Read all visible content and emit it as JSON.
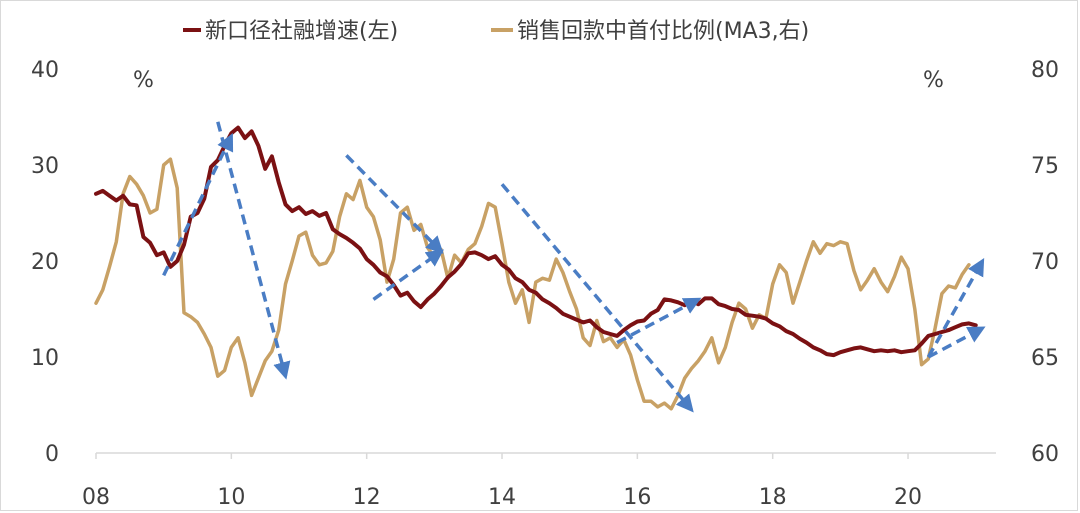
{
  "chart_data": {
    "type": "line",
    "legend": [
      {
        "name": "新口径社融增速(左)",
        "color": "#7b1113"
      },
      {
        "name": "销售回款中首付比例(MA3,右)",
        "color": "#c8a165"
      }
    ],
    "left_unit": "%",
    "right_unit": "%",
    "x_ticks": [
      "08",
      "10",
      "12",
      "14",
      "16",
      "18",
      "20"
    ],
    "x_range": [
      2008,
      2021.3
    ],
    "left_axis": {
      "range": [
        0,
        40
      ],
      "ticks": [
        "0",
        "10",
        "20",
        "30",
        "40"
      ]
    },
    "right_axis": {
      "range": [
        60,
        80
      ],
      "ticks": [
        "60",
        "65",
        "70",
        "75",
        "80"
      ]
    },
    "series": [
      {
        "name": "新口径社融增速(左)",
        "axis": "left",
        "color": "#7b1113",
        "points": [
          [
            2008.0,
            27.0
          ],
          [
            2008.1,
            27.3
          ],
          [
            2008.2,
            26.8
          ],
          [
            2008.3,
            26.3
          ],
          [
            2008.4,
            26.8
          ],
          [
            2008.5,
            25.9
          ],
          [
            2008.6,
            25.8
          ],
          [
            2008.7,
            22.5
          ],
          [
            2008.8,
            21.9
          ],
          [
            2008.9,
            20.6
          ],
          [
            2009.0,
            20.9
          ],
          [
            2009.1,
            19.4
          ],
          [
            2009.2,
            20.0
          ],
          [
            2009.3,
            21.7
          ],
          [
            2009.4,
            24.6
          ],
          [
            2009.5,
            25.0
          ],
          [
            2009.6,
            26.5
          ],
          [
            2009.7,
            29.8
          ],
          [
            2009.8,
            30.5
          ],
          [
            2009.9,
            32.0
          ],
          [
            2010.0,
            33.3
          ],
          [
            2010.1,
            33.9
          ],
          [
            2010.2,
            32.8
          ],
          [
            2010.3,
            33.5
          ],
          [
            2010.4,
            32.0
          ],
          [
            2010.5,
            29.6
          ],
          [
            2010.6,
            30.9
          ],
          [
            2010.7,
            28.2
          ],
          [
            2010.8,
            25.9
          ],
          [
            2010.9,
            25.2
          ],
          [
            2011.0,
            25.6
          ],
          [
            2011.1,
            24.9
          ],
          [
            2011.2,
            25.2
          ],
          [
            2011.3,
            24.7
          ],
          [
            2011.4,
            25.0
          ],
          [
            2011.5,
            23.3
          ],
          [
            2011.6,
            22.8
          ],
          [
            2011.7,
            22.4
          ],
          [
            2011.8,
            21.9
          ],
          [
            2011.9,
            21.3
          ],
          [
            2012.0,
            20.2
          ],
          [
            2012.1,
            19.6
          ],
          [
            2012.2,
            18.8
          ],
          [
            2012.3,
            18.4
          ],
          [
            2012.4,
            17.5
          ],
          [
            2012.5,
            16.4
          ],
          [
            2012.6,
            16.7
          ],
          [
            2012.7,
            15.8
          ],
          [
            2012.8,
            15.2
          ],
          [
            2012.9,
            16.0
          ],
          [
            2013.0,
            16.6
          ],
          [
            2013.1,
            17.4
          ],
          [
            2013.2,
            18.3
          ],
          [
            2013.3,
            18.9
          ],
          [
            2013.4,
            19.7
          ],
          [
            2013.5,
            20.8
          ],
          [
            2013.6,
            20.9
          ],
          [
            2013.7,
            20.6
          ],
          [
            2013.8,
            20.2
          ],
          [
            2013.9,
            20.5
          ],
          [
            2014.0,
            19.6
          ],
          [
            2014.1,
            19.1
          ],
          [
            2014.2,
            18.2
          ],
          [
            2014.3,
            17.8
          ],
          [
            2014.4,
            17.0
          ],
          [
            2014.5,
            16.7
          ],
          [
            2014.6,
            16.0
          ],
          [
            2014.7,
            15.6
          ],
          [
            2014.8,
            15.1
          ],
          [
            2014.9,
            14.5
          ],
          [
            2015.0,
            14.2
          ],
          [
            2015.1,
            13.9
          ],
          [
            2015.2,
            13.6
          ],
          [
            2015.3,
            13.8
          ],
          [
            2015.4,
            13.1
          ],
          [
            2015.5,
            12.6
          ],
          [
            2015.6,
            12.4
          ],
          [
            2015.7,
            12.2
          ],
          [
            2015.8,
            12.8
          ],
          [
            2015.9,
            13.3
          ],
          [
            2016.0,
            13.7
          ],
          [
            2016.1,
            13.8
          ],
          [
            2016.2,
            14.5
          ],
          [
            2016.3,
            14.9
          ],
          [
            2016.4,
            16.0
          ],
          [
            2016.5,
            15.9
          ],
          [
            2016.6,
            15.7
          ],
          [
            2016.7,
            15.4
          ],
          [
            2016.8,
            15.9
          ],
          [
            2016.9,
            15.5
          ],
          [
            2017.0,
            16.1
          ],
          [
            2017.1,
            16.1
          ],
          [
            2017.2,
            15.5
          ],
          [
            2017.3,
            15.3
          ],
          [
            2017.4,
            15.0
          ],
          [
            2017.5,
            14.9
          ],
          [
            2017.6,
            14.4
          ],
          [
            2017.7,
            14.3
          ],
          [
            2017.8,
            14.2
          ],
          [
            2017.9,
            14.0
          ],
          [
            2018.0,
            13.5
          ],
          [
            2018.1,
            13.2
          ],
          [
            2018.2,
            12.7
          ],
          [
            2018.3,
            12.4
          ],
          [
            2018.4,
            11.9
          ],
          [
            2018.5,
            11.5
          ],
          [
            2018.6,
            11.0
          ],
          [
            2018.7,
            10.7
          ],
          [
            2018.8,
            10.3
          ],
          [
            2018.9,
            10.2
          ],
          [
            2019.0,
            10.5
          ],
          [
            2019.1,
            10.7
          ],
          [
            2019.2,
            10.9
          ],
          [
            2019.3,
            11.0
          ],
          [
            2019.4,
            10.8
          ],
          [
            2019.5,
            10.6
          ],
          [
            2019.6,
            10.7
          ],
          [
            2019.7,
            10.6
          ],
          [
            2019.8,
            10.7
          ],
          [
            2019.9,
            10.5
          ],
          [
            2020.0,
            10.6
          ],
          [
            2020.1,
            10.7
          ],
          [
            2020.2,
            11.4
          ],
          [
            2020.3,
            12.2
          ],
          [
            2020.4,
            12.4
          ],
          [
            2020.5,
            12.6
          ],
          [
            2020.6,
            12.8
          ],
          [
            2020.7,
            13.1
          ],
          [
            2020.8,
            13.4
          ],
          [
            2020.9,
            13.5
          ],
          [
            2021.0,
            13.3
          ]
        ]
      },
      {
        "name": "销售回款中首付比例(MA3,右)",
        "axis": "right",
        "color": "#c8a165",
        "points": [
          [
            2008.0,
            67.8
          ],
          [
            2008.1,
            68.5
          ],
          [
            2008.2,
            69.7
          ],
          [
            2008.3,
            71.0
          ],
          [
            2008.4,
            73.5
          ],
          [
            2008.5,
            74.4
          ],
          [
            2008.6,
            74.0
          ],
          [
            2008.7,
            73.4
          ],
          [
            2008.8,
            72.5
          ],
          [
            2008.9,
            72.7
          ],
          [
            2009.0,
            75.0
          ],
          [
            2009.1,
            75.3
          ],
          [
            2009.2,
            73.8
          ],
          [
            2009.3,
            67.3
          ],
          [
            2009.4,
            67.1
          ],
          [
            2009.5,
            66.8
          ],
          [
            2009.6,
            66.2
          ],
          [
            2009.7,
            65.5
          ],
          [
            2009.8,
            64.0
          ],
          [
            2009.9,
            64.3
          ],
          [
            2010.0,
            65.5
          ],
          [
            2010.1,
            66.0
          ],
          [
            2010.2,
            64.7
          ],
          [
            2010.3,
            63.0
          ],
          [
            2010.4,
            63.9
          ],
          [
            2010.5,
            64.8
          ],
          [
            2010.6,
            65.3
          ],
          [
            2010.7,
            66.4
          ],
          [
            2010.8,
            68.8
          ],
          [
            2010.9,
            70.0
          ],
          [
            2011.0,
            71.3
          ],
          [
            2011.1,
            71.5
          ],
          [
            2011.2,
            70.3
          ],
          [
            2011.3,
            69.8
          ],
          [
            2011.4,
            69.9
          ],
          [
            2011.5,
            70.5
          ],
          [
            2011.6,
            72.3
          ],
          [
            2011.7,
            73.5
          ],
          [
            2011.8,
            73.2
          ],
          [
            2011.9,
            74.2
          ],
          [
            2012.0,
            72.8
          ],
          [
            2012.1,
            72.3
          ],
          [
            2012.2,
            71.1
          ],
          [
            2012.3,
            68.9
          ],
          [
            2012.4,
            70.1
          ],
          [
            2012.5,
            72.5
          ],
          [
            2012.6,
            72.8
          ],
          [
            2012.7,
            71.6
          ],
          [
            2012.8,
            71.9
          ],
          [
            2012.9,
            70.7
          ],
          [
            2013.0,
            70.2
          ],
          [
            2013.1,
            70.6
          ],
          [
            2013.2,
            69.1
          ],
          [
            2013.3,
            70.3
          ],
          [
            2013.4,
            69.9
          ],
          [
            2013.5,
            70.6
          ],
          [
            2013.6,
            70.9
          ],
          [
            2013.7,
            71.8
          ],
          [
            2013.8,
            73.0
          ],
          [
            2013.9,
            72.8
          ],
          [
            2014.0,
            70.9
          ],
          [
            2014.1,
            68.9
          ],
          [
            2014.2,
            67.8
          ],
          [
            2014.3,
            68.5
          ],
          [
            2014.4,
            66.8
          ],
          [
            2014.5,
            68.9
          ],
          [
            2014.6,
            69.1
          ],
          [
            2014.7,
            69.0
          ],
          [
            2014.8,
            70.1
          ],
          [
            2014.9,
            69.4
          ],
          [
            2015.0,
            68.4
          ],
          [
            2015.1,
            67.5
          ],
          [
            2015.2,
            66.0
          ],
          [
            2015.3,
            65.6
          ],
          [
            2015.4,
            66.9
          ],
          [
            2015.5,
            65.8
          ],
          [
            2015.6,
            66.0
          ],
          [
            2015.7,
            65.5
          ],
          [
            2015.8,
            65.9
          ],
          [
            2015.9,
            65.1
          ],
          [
            2016.0,
            63.8
          ],
          [
            2016.1,
            62.7
          ],
          [
            2016.2,
            62.7
          ],
          [
            2016.3,
            62.4
          ],
          [
            2016.4,
            62.6
          ],
          [
            2016.5,
            62.3
          ],
          [
            2016.6,
            63.0
          ],
          [
            2016.7,
            63.9
          ],
          [
            2016.8,
            64.4
          ],
          [
            2016.9,
            64.8
          ],
          [
            2017.0,
            65.3
          ],
          [
            2017.1,
            66.0
          ],
          [
            2017.2,
            64.7
          ],
          [
            2017.3,
            65.5
          ],
          [
            2017.4,
            66.8
          ],
          [
            2017.5,
            67.8
          ],
          [
            2017.6,
            67.5
          ],
          [
            2017.7,
            66.5
          ],
          [
            2017.8,
            67.2
          ],
          [
            2017.9,
            67.0
          ],
          [
            2018.0,
            68.8
          ],
          [
            2018.1,
            69.8
          ],
          [
            2018.2,
            69.4
          ],
          [
            2018.3,
            67.8
          ],
          [
            2018.4,
            68.9
          ],
          [
            2018.5,
            70.0
          ],
          [
            2018.6,
            71.0
          ],
          [
            2018.7,
            70.4
          ],
          [
            2018.8,
            70.9
          ],
          [
            2018.9,
            70.8
          ],
          [
            2019.0,
            71.0
          ],
          [
            2019.1,
            70.9
          ],
          [
            2019.2,
            69.5
          ],
          [
            2019.3,
            68.5
          ],
          [
            2019.4,
            69.0
          ],
          [
            2019.5,
            69.6
          ],
          [
            2019.6,
            68.9
          ],
          [
            2019.7,
            68.4
          ],
          [
            2019.8,
            69.2
          ],
          [
            2019.9,
            70.2
          ],
          [
            2020.0,
            69.6
          ],
          [
            2020.1,
            67.5
          ],
          [
            2020.2,
            64.6
          ],
          [
            2020.3,
            64.9
          ],
          [
            2020.4,
            66.5
          ],
          [
            2020.5,
            68.3
          ],
          [
            2020.6,
            68.7
          ],
          [
            2020.7,
            68.6
          ],
          [
            2020.8,
            69.3
          ],
          [
            2020.9,
            69.8
          ]
        ]
      }
    ],
    "trend_arrows": [
      {
        "axis": "left",
        "from": [
          2009.8,
          34.5
        ],
        "to": [
          2010.8,
          8.0
        ]
      },
      {
        "axis": "left",
        "from": [
          2009.0,
          18.5
        ],
        "to": [
          2010.0,
          33.0
        ]
      },
      {
        "axis": "left",
        "from": [
          2011.7,
          31.0
        ],
        "to": [
          2013.1,
          21.0
        ]
      },
      {
        "axis": "left",
        "from": [
          2012.1,
          16.0
        ],
        "to": [
          2013.1,
          21.0
        ]
      },
      {
        "axis": "left",
        "from": [
          2014.0,
          28.0
        ],
        "to": [
          2016.8,
          4.5
        ]
      },
      {
        "axis": "left",
        "from": [
          2015.7,
          11.5
        ],
        "to": [
          2016.9,
          16.0
        ]
      },
      {
        "axis": "left",
        "from": [
          2020.3,
          10.0
        ],
        "to": [
          2021.1,
          20.0
        ]
      },
      {
        "axis": "left",
        "from": [
          2020.3,
          10.0
        ],
        "to": [
          2021.1,
          13.0
        ]
      }
    ]
  }
}
